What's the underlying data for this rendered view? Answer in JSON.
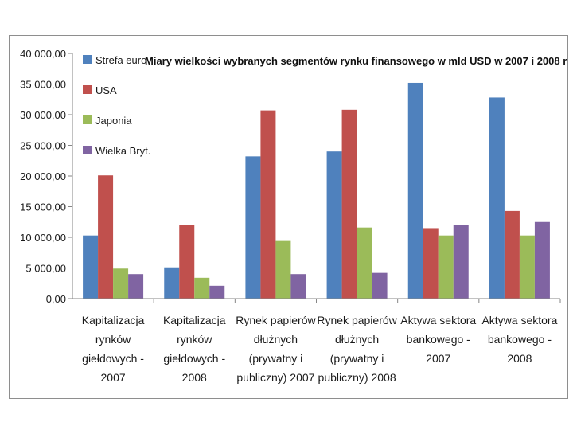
{
  "chart_data": {
    "type": "bar",
    "title": "Miary wielkości wybranych segmentów rynku finansowego w mld USD w 2007 i 2008 r.",
    "xlabel": "",
    "ylabel": "",
    "ylim": [
      0,
      40000
    ],
    "yticks": [
      0,
      5000,
      10000,
      15000,
      20000,
      25000,
      30000,
      35000,
      40000
    ],
    "ytick_labels": [
      "0,00",
      "5 000,00",
      "10 000,00",
      "15 000,00",
      "20 000,00",
      "25 000,00",
      "30 000,00",
      "35 000,00",
      "40 000,00"
    ],
    "grid": false,
    "legend_position": "top-left",
    "categories": [
      [
        "Kapitalizacja",
        "rynków",
        "giełdowych -",
        "2007"
      ],
      [
        "Kapitalizacja",
        "rynków",
        "giełdowych -",
        "2008"
      ],
      [
        "Rynek papierów",
        "dłużnych",
        "(prywatny i",
        "publiczny) 2007"
      ],
      [
        "Rynek papierów",
        "dłużnych",
        "(prywatny i",
        "publiczny) 2008"
      ],
      [
        "Aktywa sektora",
        "bankowego -",
        "2007"
      ],
      [
        "Aktywa sektora",
        "bankowego -",
        "2008"
      ]
    ],
    "series": [
      {
        "name": "Strefa euro",
        "color": "#4f81bd",
        "values": [
          10300,
          5100,
          23200,
          24000,
          35200,
          32800
        ]
      },
      {
        "name": "USA",
        "color": "#c0504d",
        "values": [
          20100,
          12000,
          30700,
          30800,
          11500,
          14300
        ]
      },
      {
        "name": "Japonia",
        "color": "#9bbb59",
        "values": [
          4900,
          3400,
          9400,
          11600,
          10300,
          10300
        ]
      },
      {
        "name": "Wielka Bryt.",
        "color": "#8064a2",
        "values": [
          4000,
          2100,
          4000,
          4200,
          12000,
          12500
        ]
      }
    ]
  }
}
